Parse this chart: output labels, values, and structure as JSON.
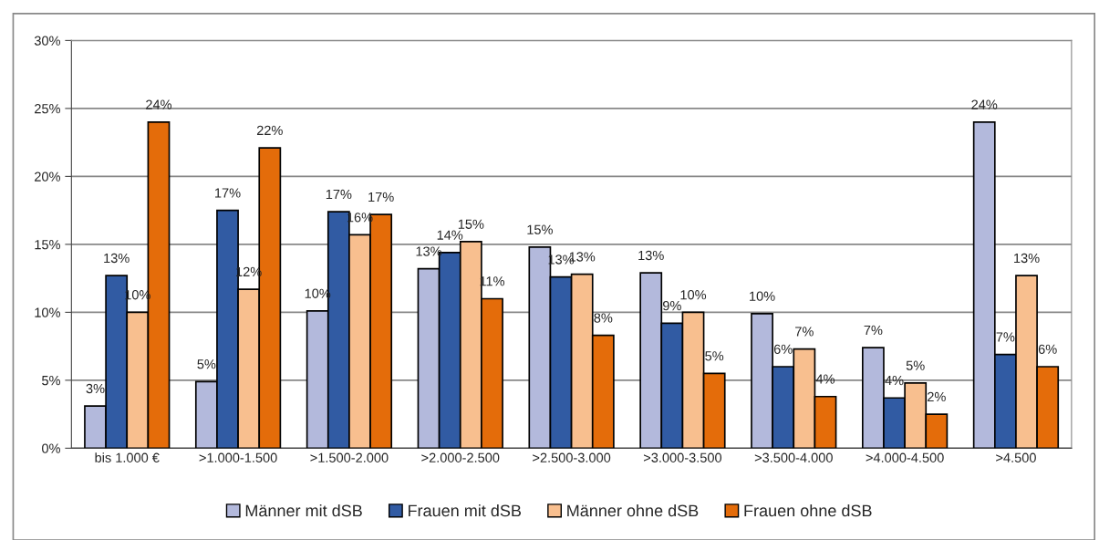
{
  "chart_data": {
    "type": "bar",
    "categories": [
      "bis 1.000 €",
      ">1.000-1.500",
      ">1.500-2.000",
      ">2.000-2.500",
      ">2.500-3.000",
      ">3.000-3.500",
      ">3.500-4.000",
      ">4.000-4.500",
      ">4.500"
    ],
    "series": [
      {
        "name": "Männer mit dSB",
        "color": "#b3b9dc",
        "values": [
          3.1,
          4.9,
          10.1,
          13.2,
          14.8,
          12.9,
          9.9,
          7.4,
          24.0
        ],
        "value_labels": [
          "3%",
          "5%",
          "10%",
          "13%",
          "15%",
          "13%",
          "10%",
          "7%",
          "24%"
        ]
      },
      {
        "name": "Frauen mit dSB",
        "color": "#315ba3",
        "values": [
          12.7,
          17.5,
          17.4,
          14.4,
          12.6,
          9.2,
          6.0,
          3.7,
          6.9
        ],
        "value_labels": [
          "13%",
          "17%",
          "17%",
          "14%",
          "13%",
          "9%",
          "6%",
          "4%",
          "7%"
        ]
      },
      {
        "name": "Männer ohne dSB",
        "color": "#f8bf8f",
        "values": [
          10.0,
          11.7,
          15.7,
          15.2,
          12.8,
          10.0,
          7.3,
          4.8,
          12.7
        ],
        "value_labels": [
          "10%",
          "12%",
          "16%",
          "15%",
          "13%",
          "10%",
          "7%",
          "5%",
          "13%"
        ]
      },
      {
        "name": "Frauen ohne dSB",
        "color": "#e46c0a",
        "values": [
          24.0,
          22.1,
          17.2,
          11.0,
          8.3,
          5.5,
          3.8,
          2.5,
          6.0
        ],
        "value_labels": [
          "24%",
          "22%",
          "17%",
          "11%",
          "8%",
          "5%",
          "4%",
          "2%",
          "6%"
        ]
      }
    ],
    "ylim": [
      0,
      30
    ],
    "yticks": [
      {
        "value": 0,
        "label": "0%"
      },
      {
        "value": 5,
        "label": "5%"
      },
      {
        "value": 10,
        "label": "10%"
      },
      {
        "value": 15,
        "label": "15%"
      },
      {
        "value": 20,
        "label": "20%"
      },
      {
        "value": 25,
        "label": "25%"
      },
      {
        "value": 30,
        "label": "30%"
      }
    ],
    "grid": "y",
    "legend": "bottom"
  }
}
